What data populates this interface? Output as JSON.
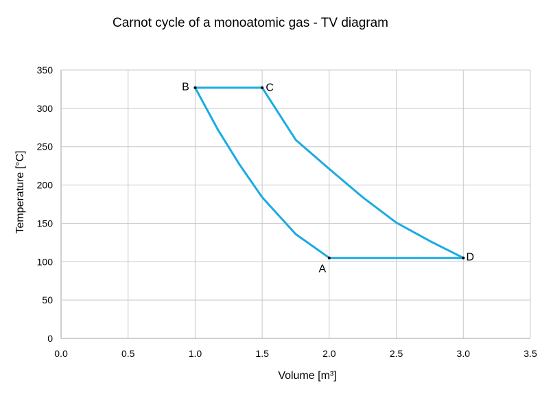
{
  "chart_data": {
    "type": "line",
    "title": "Carnot cycle of a monoatomic gas - TV diagram",
    "xlabel": "Volume [m³]",
    "ylabel": "Temperature [°C]",
    "xlim": [
      0,
      3.5
    ],
    "ylim": [
      0,
      350
    ],
    "x_ticks": [
      "0.0",
      "0.5",
      "1.0",
      "1.5",
      "2.0",
      "2.5",
      "3.0",
      "3.5"
    ],
    "y_ticks": [
      "0",
      "50",
      "100",
      "150",
      "200",
      "250",
      "300",
      "350"
    ],
    "grid": true,
    "legend": "none",
    "line_color": "#1aabe3",
    "series": [
      {
        "x": [
          1.0,
          1.5,
          1.75,
          2.0,
          2.25,
          2.5,
          2.75,
          3.0,
          2.0,
          1.75,
          1.5,
          1.33,
          1.17,
          1.0
        ],
        "y": [
          327,
          327,
          259,
          221,
          184,
          151,
          127,
          105,
          105,
          136,
          184,
          227,
          272,
          327
        ]
      }
    ],
    "point_labels": [
      {
        "label": "A",
        "x": 2.0,
        "y": 105
      },
      {
        "label": "B",
        "x": 1.0,
        "y": 327
      },
      {
        "label": "C",
        "x": 1.5,
        "y": 327
      },
      {
        "label": "D",
        "x": 3.0,
        "y": 105
      }
    ]
  }
}
